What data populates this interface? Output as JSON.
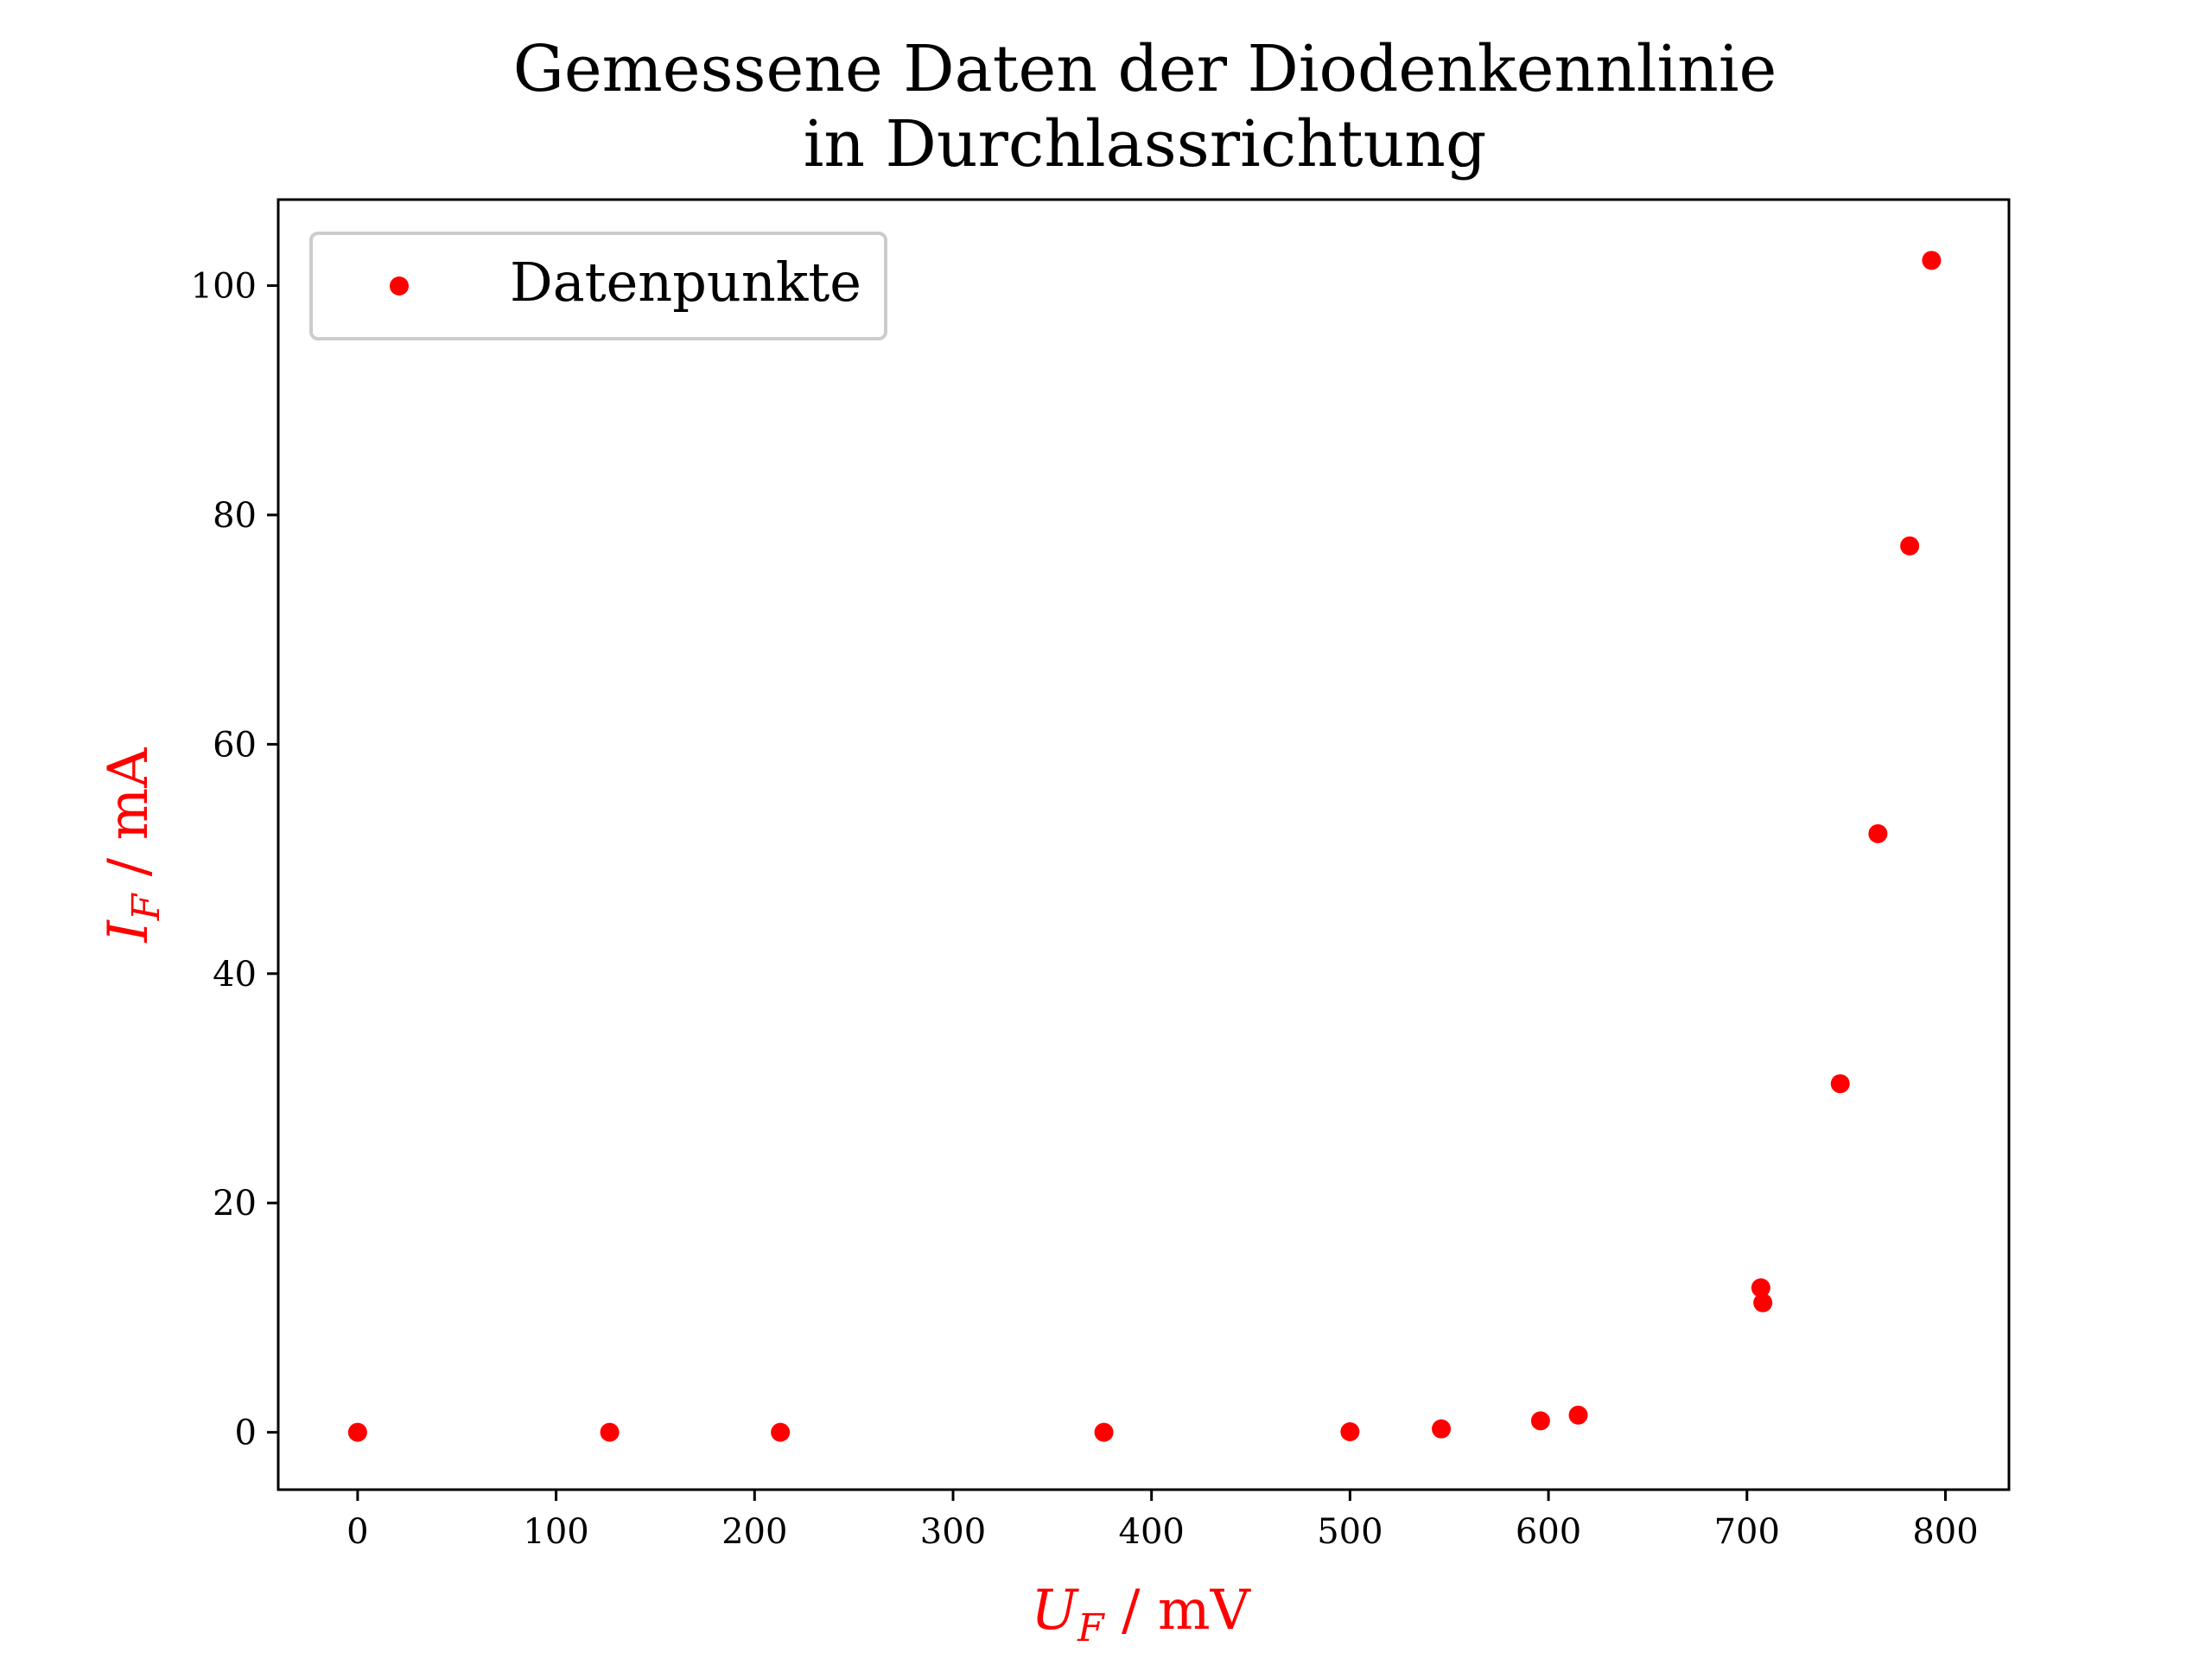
{
  "chart_data": {
    "type": "scatter",
    "title": [
      "Gemessene Daten der Diodenkennlinie",
      "in Durchlassrichtung"
    ],
    "xlabel": {
      "main": "U",
      "sub": "F",
      "unit": " / mV"
    },
    "ylabel": {
      "main": "I",
      "sub": "F",
      "unit": " / mA"
    },
    "label_color": "#ff0000",
    "marker_color": "#ff0000",
    "xlim": [
      -40,
      832
    ],
    "ylim": [
      -5,
      107.5
    ],
    "xticks": [
      0,
      100,
      200,
      300,
      400,
      500,
      600,
      700,
      800
    ],
    "yticks": [
      0,
      20,
      40,
      60,
      80,
      100
    ],
    "grid": false,
    "legend": {
      "position": "top-left",
      "entries": [
        "Datenpunkte"
      ]
    },
    "series": [
      {
        "name": "Datenpunkte",
        "x": [
          0,
          127,
          213,
          376,
          500,
          546,
          596,
          615,
          707,
          708,
          747,
          766,
          782,
          793
        ],
        "y": [
          0,
          0,
          0,
          0,
          0.05,
          0.3,
          1.0,
          1.5,
          12.6,
          11.3,
          30.4,
          52.2,
          77.3,
          102.2
        ]
      }
    ]
  }
}
